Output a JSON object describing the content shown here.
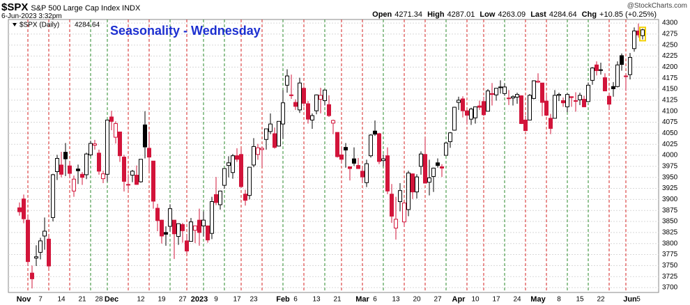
{
  "header": {
    "symbol": "$SPX",
    "name": "S&P 500 Large Cap Index INDX",
    "date": "6-Jun-2023 3:32pm",
    "brand": "@StockCharts.com",
    "open_label": "Open",
    "high_label": "High",
    "low_label": "Low",
    "last_label": "Last",
    "chg_label": "Chg",
    "chg": "+10.85 (+0.25%)"
  },
  "chart_data": {
    "type": "candlestick",
    "title": "Seasonality - Wednesday",
    "categories": [
      null,
      "Nov",
      null,
      null,
      null,
      "7",
      null,
      null,
      null,
      null,
      "14",
      null,
      null,
      null,
      null,
      "21",
      null,
      null,
      null,
      "28",
      null,
      null,
      "Dec",
      null,
      null,
      null,
      null,
      null,
      null,
      "12",
      null,
      null,
      null,
      null,
      "19",
      null,
      null,
      null,
      null,
      "27",
      null,
      null,
      null,
      "2023",
      null,
      null,
      null,
      "9",
      null,
      null,
      null,
      null,
      "17",
      null,
      null,
      null,
      "23",
      null,
      null,
      null,
      null,
      null,
      null,
      "Feb",
      null,
      null,
      "6",
      null,
      null,
      null,
      null,
      "13",
      null,
      null,
      null,
      null,
      "21",
      null,
      null,
      null,
      null,
      null,
      "Mar",
      null,
      null,
      "6",
      null,
      null,
      null,
      null,
      "13",
      null,
      null,
      null,
      null,
      "20",
      null,
      null,
      null,
      null,
      "27",
      null,
      null,
      null,
      null,
      "Apr",
      null,
      null,
      null,
      "10",
      null,
      null,
      null,
      null,
      "17",
      null,
      null,
      null,
      null,
      "24",
      null,
      null,
      null,
      null,
      "May",
      null,
      null,
      null,
      null,
      "8",
      null,
      null,
      null,
      null,
      "15",
      null,
      null,
      null,
      null,
      "22",
      null,
      null,
      null,
      null,
      null,
      null,
      "Jun",
      null,
      "5",
      null
    ],
    "series": [
      {
        "name": "$SPX (Daily)",
        "color_up": "#000000",
        "color_down": "#d2143a",
        "open": [
          3881,
          3901,
          3853,
          3733,
          3767,
          3780,
          3817,
          3810,
          3859,
          3963,
          3978,
          4007,
          3976,
          3919,
          3969,
          3957,
          3956,
          4001,
          4023,
          4005,
          3947,
          3957,
          4087,
          4041,
          4053,
          3996,
          3933,
          3955,
          3955,
          3940,
          4069,
          4016,
          3987,
          3880,
          3853,
          3825,
          3839,
          3853,
          3816,
          3843,
          3806,
          3805,
          3830,
          3853,
          3840,
          3840,
          3823,
          3911,
          3888,
          3932,
          3977,
          3961,
          3999,
          4002,
          3912,
          3909,
          3978,
          4002,
          4013,
          4036,
          4054,
          4049,
          4021,
          4071,
          4159,
          4137,
          4120,
          4103,
          4152,
          4117,
          4080,
          4101,
          4127,
          4124,
          4115,
          4073,
          4052,
          4001,
          4018,
          3974,
          3992,
          3977,
          3964,
          3938,
          3999,
          4055,
          4049,
          3988,
          3999,
          3912,
          3835,
          3895,
          3849,
          3877,
          3958,
          3917,
          3975,
          4002,
          3939,
          3952,
          3983,
          3974,
          4000,
          4031,
          4057,
          4120,
          4128,
          4101,
          4082,
          4085,
          4112,
          4122,
          4100,
          4140,
          4137,
          4155,
          4140,
          4130,
          4130,
          4132,
          4135,
          4080,
          4080,
          4129,
          4166,
          4164,
          4123,
          4084,
          4084,
          4136,
          4124,
          4110,
          4133,
          4123,
          4126,
          4127,
          4122,
          4170,
          4205,
          4194,
          4176,
          4134,
          4156,
          4156,
          4226,
          4179,
          4183,
          4242,
          4282,
          4271.34
        ],
        "high": [
          3893,
          3911,
          3863,
          3750,
          3796,
          3813,
          3859,
          3818,
          3958,
          4001,
          4008,
          4028,
          3984,
          3954,
          3979,
          3962,
          4006,
          4033,
          4035,
          4013,
          3965,
          4080,
          4101,
          4077,
          4053,
          4001,
          3957,
          3967,
          3977,
          3991,
          4100,
          4052,
          3987,
          3890,
          3854,
          3839,
          3889,
          3853,
          3846,
          3847,
          3819,
          3858,
          3840,
          3879,
          3873,
          3840,
          3906,
          3951,
          3920,
          3970,
          3998,
          4003,
          4016,
          4015,
          3922,
          3973,
          4039,
          4026,
          4020,
          4060,
          4095,
          4063,
          4077,
          4148,
          4195,
          4183,
          4127,
          4176,
          4157,
          4123,
          4095,
          4138,
          4153,
          4149,
          4136,
          4081,
          4052,
          4018,
          4028,
          3974,
          4018,
          3994,
          3971,
          3990,
          4048,
          4079,
          4051,
          4002,
          4018,
          3935,
          3906,
          3937,
          3893,
          3965,
          3959,
          3957,
          4009,
          4039,
          3990,
          3972,
          3993,
          3980,
          4030,
          4053,
          4110,
          4133,
          4134,
          4104,
          4108,
          4110,
          4124,
          4133,
          4150,
          4164,
          4152,
          4170,
          4163,
          4148,
          4136,
          4142,
          4136,
          4090,
          4139,
          4170,
          4186,
          4164,
          4136,
          4094,
          4148,
          4142,
          4131,
          4141,
          4133,
          4143,
          4142,
          4135,
          4165,
          4200,
          4213,
          4210,
          4186,
          4138,
          4166,
          4213,
          4231,
          4184,
          4232,
          4290,
          4299,
          4287.01
        ],
        "low": [
          3863,
          3846,
          3749,
          3698,
          3749,
          3764,
          3786,
          3744,
          3850,
          3944,
          3950,
          3953,
          3948,
          3906,
          3935,
          3933,
          3946,
          3998,
          4013,
          3956,
          3937,
          3940,
          4057,
          4027,
          3985,
          3918,
          3922,
          3939,
          3933,
          3938,
          3993,
          3965,
          3879,
          3828,
          3800,
          3795,
          3827,
          3765,
          3797,
          3802,
          3777,
          3805,
          3801,
          3795,
          3816,
          3802,
          3810,
          3887,
          3877,
          3924,
          3950,
          3947,
          3985,
          3926,
          3886,
          3900,
          3973,
          3990,
          3974,
          4013,
          4048,
          4015,
          4020,
          4038,
          4142,
          4128,
          4103,
          4096,
          4111,
          4072,
          4060,
          4093,
          4095,
          4113,
          4087,
          4048,
          3995,
          3982,
          3972,
          3943,
          3976,
          3969,
          3939,
          3928,
          3995,
          4044,
          3980,
          3975,
          3912,
          3847,
          3809,
          3873,
          3838,
          3862,
          3901,
          3902,
          3956,
          3936,
          3909,
          3917,
          3972,
          3951,
          3999,
          4017,
          4056,
          4103,
          4086,
          4072,
          4069,
          4072,
          4103,
          4089,
          4100,
          4113,
          4124,
          4140,
          4135,
          4114,
          4113,
          4117,
          4071,
          4055,
          4080,
          4127,
          4164,
          4089,
          4089,
          4048,
          4084,
          4123,
          4110,
          4098,
          4110,
          4099,
          4114,
          4109,
          4122,
          4160,
          4181,
          4183,
          4146,
          4103,
          4133,
          4154,
          4192,
          4146,
          4172,
          4235,
          4267,
          4263.09
        ],
        "close": [
          3872,
          3856,
          3759,
          3720,
          3770,
          3806,
          3828,
          3749,
          3956,
          3993,
          3957,
          3992,
          3959,
          3946,
          3965,
          3950,
          4003,
          4027,
          4026,
          3964,
          3958,
          4080,
          4077,
          4072,
          3999,
          3941,
          3934,
          3964,
          3934,
          3991,
          4019,
          3996,
          3896,
          3852,
          3817,
          3821,
          3879,
          3822,
          3845,
          3829,
          3783,
          3849,
          3840,
          3825,
          3853,
          3808,
          3895,
          3893,
          3919,
          3970,
          3983,
          3999,
          3991,
          3929,
          3898,
          3973,
          4020,
          4017,
          4016,
          4060,
          4071,
          4018,
          4077,
          4119,
          4180,
          4136,
          4111,
          4164,
          4118,
          4082,
          4090,
          4137,
          4136,
          4148,
          4090,
          4079,
          3997,
          3991,
          4012,
          3970,
          3982,
          3970,
          3951,
          3981,
          4046,
          4048,
          3986,
          3992,
          3919,
          3862,
          3855,
          3920,
          3892,
          3960,
          3917,
          3951,
          4003,
          3937,
          3949,
          3971,
          3977,
          3971,
          4028,
          4051,
          4109,
          4125,
          4101,
          4091,
          4105,
          4110,
          4109,
          4092,
          4146,
          4138,
          4152,
          4154,
          4155,
          4130,
          4133,
          4138,
          4072,
          4056,
          4136,
          4169,
          4168,
          4120,
          4091,
          4061,
          4136,
          4138,
          4119,
          4138,
          4131,
          4124,
          4136,
          4110,
          4159,
          4198,
          4192,
          4193,
          4146,
          4116,
          4151,
          4205,
          4206,
          4180,
          4222,
          4282,
          4273,
          4284.64
        ]
      }
    ],
    "vline_colors": [
      null,
      null,
      "#d42020",
      null,
      null,
      null,
      null,
      "#d42020",
      null,
      null,
      null,
      null,
      "#d42020",
      null,
      null,
      null,
      null,
      "#2a8a2a",
      null,
      null,
      null,
      "#2a8a2a",
      null,
      null,
      null,
      null,
      "#d42020",
      null,
      null,
      null,
      null,
      "#d42020",
      null,
      null,
      null,
      null,
      "#2a8a2a",
      null,
      null,
      null,
      "#d42020",
      null,
      null,
      null,
      "#2a8a2a",
      null,
      null,
      null,
      null,
      "#2a8a2a",
      null,
      null,
      null,
      "#d42020",
      null,
      null,
      null,
      null,
      "#d42020",
      null,
      null,
      null,
      null,
      "#2a8a2a",
      null,
      null,
      null,
      null,
      "#d42020",
      null,
      null,
      null,
      null,
      "#2a8a2a",
      null,
      null,
      null,
      "#d42020",
      null,
      null,
      null,
      null,
      "#d42020",
      null,
      null,
      null,
      null,
      "#2a8a2a",
      null,
      null,
      null,
      null,
      "#d42020",
      null,
      null,
      null,
      null,
      "#d42020",
      null,
      null,
      null,
      null,
      "#2a8a2a",
      null,
      null,
      null,
      null,
      "#d42020",
      null,
      null,
      null,
      "#d42020",
      null,
      null,
      null,
      null,
      "#2a8a2a",
      null,
      null,
      null,
      null,
      "#d42020",
      null,
      null,
      null,
      null,
      "#d42020",
      null,
      null,
      null,
      null,
      "#2a8a2a",
      null,
      null,
      null,
      null,
      "#2a8a2a",
      null,
      null,
      null,
      null,
      "#d42020",
      null,
      null,
      null,
      "#d42020",
      null,
      null,
      null,
      null
    ],
    "ylim": [
      3689,
      4308
    ],
    "yticks": [
      3700,
      3725,
      3750,
      3775,
      3800,
      3825,
      3850,
      3875,
      3900,
      3925,
      3950,
      3975,
      4000,
      4025,
      4050,
      4075,
      4100,
      4125,
      4150,
      4175,
      4200,
      4225,
      4250,
      4275,
      4300
    ],
    "grid": true
  }
}
